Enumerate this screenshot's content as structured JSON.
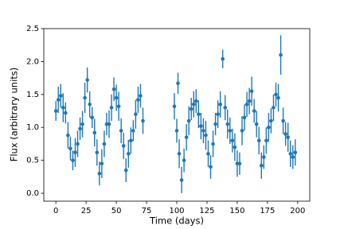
{
  "chart_data": {
    "type": "errorbar-scatter",
    "xlabel": "Time (days)",
    "ylabel": "Flux (arbitrary units)",
    "x": [
      0,
      2,
      4,
      6,
      8,
      10,
      12,
      14,
      16,
      18,
      20,
      22,
      24,
      26,
      28,
      30,
      32,
      34,
      36,
      38,
      40,
      42,
      44,
      46,
      48,
      50,
      52,
      54,
      56,
      58,
      60,
      62,
      64,
      66,
      68,
      70,
      72,
      98,
      100,
      101,
      102,
      104,
      106,
      108,
      110,
      112,
      114,
      116,
      118,
      120,
      122,
      124,
      126,
      128,
      130,
      132,
      134,
      136,
      138,
      140,
      142,
      144,
      146,
      148,
      150,
      152,
      154,
      156,
      158,
      160,
      162,
      164,
      166,
      168,
      170,
      172,
      174,
      176,
      178,
      180,
      182,
      184,
      186,
      188,
      190,
      192,
      194,
      196,
      198
    ],
    "values": [
      1.25,
      1.42,
      1.48,
      1.3,
      1.22,
      0.88,
      0.68,
      0.5,
      0.62,
      0.75,
      0.98,
      1.05,
      1.45,
      1.72,
      1.35,
      1.15,
      0.92,
      0.62,
      0.3,
      0.45,
      0.75,
      1.05,
      1.05,
      1.3,
      1.58,
      1.45,
      1.32,
      0.95,
      0.72,
      0.35,
      0.6,
      0.8,
      0.95,
      1.2,
      1.42,
      1.48,
      1.1,
      1.32,
      0.95,
      1.67,
      0.6,
      0.2,
      0.5,
      0.85,
      1.1,
      1.28,
      1.35,
      1.4,
      1.2,
      1.02,
      0.95,
      0.88,
      0.6,
      0.4,
      0.75,
      1.05,
      1.2,
      1.35,
      2.04,
      1.3,
      1.05,
      0.95,
      0.8,
      0.7,
      0.45,
      0.45,
      0.95,
      1.15,
      1.35,
      1.4,
      1.55,
      1.25,
      1.05,
      0.8,
      0.42,
      0.55,
      0.8,
      1.0,
      1.1,
      1.3,
      1.5,
      1.45,
      2.1,
      1.1,
      0.9,
      0.85,
      0.6,
      0.55,
      0.62
    ],
    "errors": [
      0.15,
      0.2,
      0.18,
      0.22,
      0.16,
      0.2,
      0.18,
      0.15,
      0.22,
      0.2,
      0.17,
      0.2,
      0.23,
      0.19,
      0.2,
      0.16,
      0.21,
      0.2,
      0.18,
      0.22,
      0.2,
      0.17,
      0.21,
      0.2,
      0.18,
      0.2,
      0.22,
      0.19,
      0.2,
      0.18,
      0.21,
      0.2,
      0.16,
      0.22,
      0.2,
      0.18,
      0.2,
      0.2,
      0.18,
      0.16,
      0.22,
      0.2,
      0.18,
      0.2,
      0.22,
      0.17,
      0.2,
      0.18,
      0.21,
      0.2,
      0.19,
      0.22,
      0.2,
      0.18,
      0.2,
      0.17,
      0.21,
      0.2,
      0.14,
      0.19,
      0.22,
      0.2,
      0.18,
      0.21,
      0.2,
      0.17,
      0.22,
      0.2,
      0.19,
      0.2,
      0.22,
      0.18,
      0.2,
      0.21,
      0.2,
      0.18,
      0.2,
      0.22,
      0.19,
      0.2,
      0.18,
      0.21,
      0.3,
      0.2,
      0.18,
      0.22,
      0.2,
      0.18,
      0.2
    ],
    "color": "#1f77b4",
    "xlim": [
      -10,
      210
    ],
    "xticks": [
      0,
      25,
      50,
      75,
      100,
      125,
      150,
      175,
      200
    ],
    "ylim": [
      -0.12,
      2.5
    ],
    "yticks": [
      {
        "value": 0,
        "label": "0.0"
      },
      {
        "value": 0.5,
        "label": "0.5"
      },
      {
        "value": 1,
        "label": "1.0"
      },
      {
        "value": 1.5,
        "label": "1.5"
      },
      {
        "value": 2,
        "label": "2.0"
      },
      {
        "value": 2.5,
        "label": "2.5"
      }
    ]
  }
}
